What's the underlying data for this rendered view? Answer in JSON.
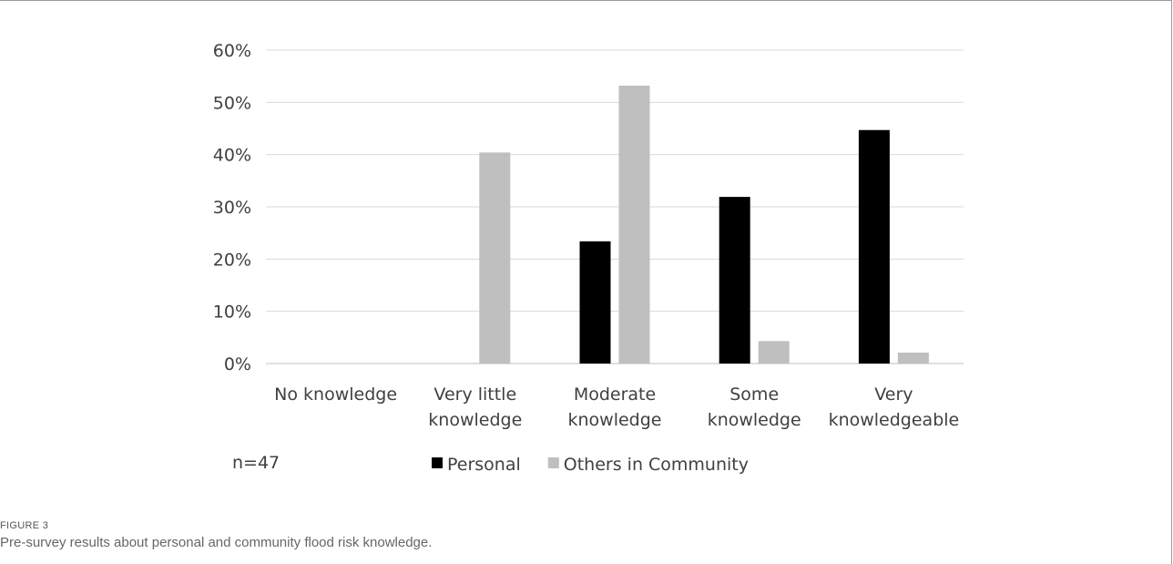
{
  "figure": {
    "label": "FIGURE 3",
    "caption": "Pre-survey results about personal and community flood risk knowledge."
  },
  "chart_data": {
    "type": "bar",
    "categories": [
      "No knowledge",
      "Very little knowledge",
      "Moderate knowledge",
      "Some knowledge",
      "Very knowledgeable"
    ],
    "category_lines": [
      [
        "No knowledge"
      ],
      [
        "Very little",
        "knowledge"
      ],
      [
        "Moderate",
        "knowledge"
      ],
      [
        "Some",
        "knowledge"
      ],
      [
        "Very",
        "knowledgeable"
      ]
    ],
    "series": [
      {
        "name": "Personal",
        "values": [
          0,
          0,
          23.4,
          31.9,
          44.7
        ],
        "color": "#000000"
      },
      {
        "name": "Others in Community",
        "values": [
          0,
          40.4,
          53.2,
          4.3,
          2.1
        ],
        "color": "#bfbfbf"
      }
    ],
    "ylim": [
      0,
      60
    ],
    "yticks": [
      "0%",
      "10%",
      "20%",
      "30%",
      "40%",
      "50%",
      "60%"
    ],
    "grid": true,
    "legend_position": "bottom",
    "annotation": "n=47",
    "title": "",
    "xlabel": "",
    "ylabel": ""
  }
}
